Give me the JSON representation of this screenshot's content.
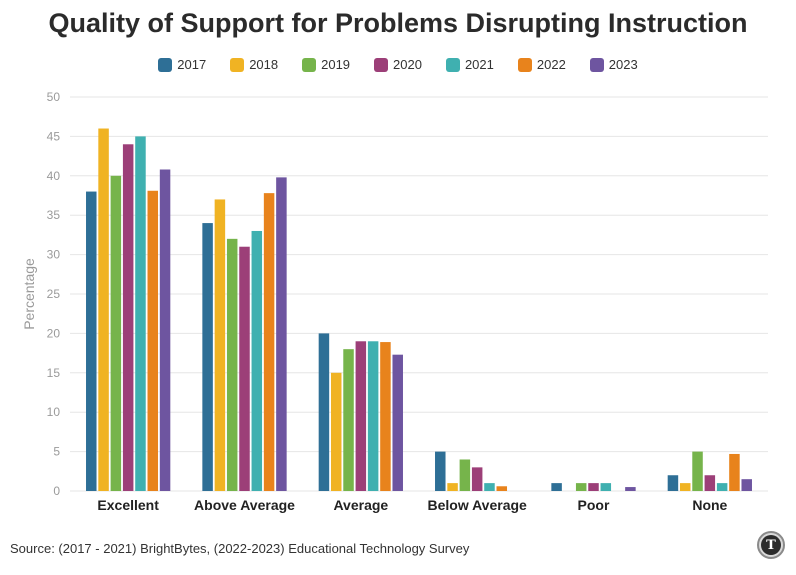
{
  "chart_data": {
    "type": "bar",
    "title": "Quality of Support for Problems Disrupting Instruction",
    "xlabel": "",
    "ylabel": "Percentage",
    "ylim": [
      0,
      50
    ],
    "yticks": [
      0,
      5,
      10,
      15,
      20,
      25,
      30,
      35,
      40,
      45,
      50
    ],
    "grid": true,
    "legend_position": "top-center",
    "categories": [
      "Excellent",
      "Above Average",
      "Average",
      "Below Average",
      "Poor",
      "None"
    ],
    "series": [
      {
        "name": "2017",
        "color": "#2e6f96",
        "values": [
          38,
          34,
          20,
          5,
          1,
          2
        ]
      },
      {
        "name": "2018",
        "color": "#f0b323",
        "values": [
          46,
          37,
          15,
          1,
          0,
          1
        ]
      },
      {
        "name": "2019",
        "color": "#76b44b",
        "values": [
          40,
          32,
          18,
          4,
          1,
          5
        ]
      },
      {
        "name": "2020",
        "color": "#9c3f78",
        "values": [
          44,
          31,
          19,
          3,
          1,
          2
        ]
      },
      {
        "name": "2021",
        "color": "#3fb0b0",
        "values": [
          45,
          33,
          19,
          1,
          1,
          1
        ]
      },
      {
        "name": "2022",
        "color": "#e8831c",
        "values": [
          38.1,
          37.8,
          18.9,
          0.6,
          0,
          4.7
        ]
      },
      {
        "name": "2023",
        "color": "#6e55a0",
        "values": [
          40.8,
          39.8,
          17.3,
          0,
          0.5,
          1.5
        ]
      }
    ]
  },
  "source": "Source: (2017 - 2021) BrightBytes, (2022-2023) Educational Technology Survey",
  "logo_letter": "T"
}
